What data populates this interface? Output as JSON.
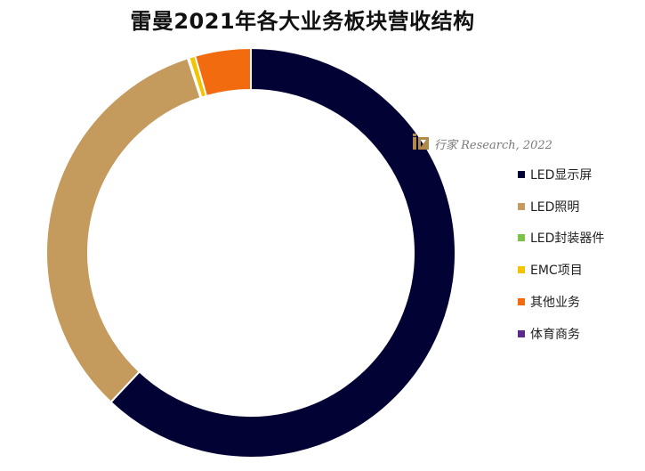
{
  "chart_data": {
    "type": "pie",
    "title": "雷曼2021年各大业务板块营收结构",
    "categories": [
      "LED显示屏",
      "LED照明",
      "LED封装器件",
      "EMC项目",
      "其他业务",
      "体育商务"
    ],
    "values": [
      62.0,
      33.0,
      0.1,
      0.5,
      4.4,
      0.0
    ],
    "unit": "%",
    "colors": [
      "#020235",
      "#C49A5D",
      "#7DC24A",
      "#F2C500",
      "#F26B0F",
      "#5B2A8C"
    ],
    "legend_position": "right",
    "donut": true,
    "start_angle": "top",
    "direction": "clockwise"
  },
  "watermark": {
    "text": "行家 Research, 2022",
    "logo_icon": "ixing-logo-icon"
  }
}
